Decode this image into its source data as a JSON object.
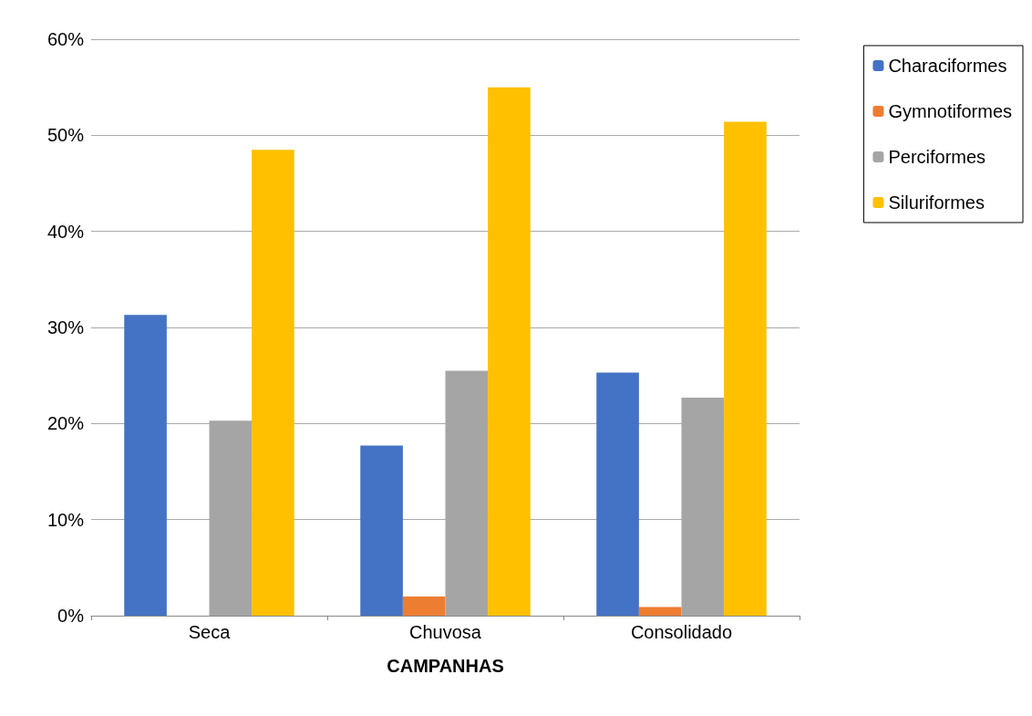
{
  "chart_data": {
    "type": "bar",
    "xlabel": "CAMPANHAS",
    "categories": [
      "Seca",
      "Chuvosa",
      "Consolidado"
    ],
    "series": [
      {
        "name": "Characiformes",
        "color": "#4472c4",
        "values": [
          31.3,
          17.7,
          25.3
        ]
      },
      {
        "name": "Gymnotiformes",
        "color": "#ed7d31",
        "values": [
          0,
          2.0,
          0.9
        ]
      },
      {
        "name": "Perciformes",
        "color": "#a5a5a5",
        "values": [
          20.3,
          25.5,
          22.7
        ]
      },
      {
        "name": "Siluriformes",
        "color": "#ffc000",
        "values": [
          48.5,
          55.0,
          51.4
        ]
      }
    ],
    "ylim": [
      0,
      60
    ],
    "yticks": [
      {
        "value": 0,
        "label": "0%"
      },
      {
        "value": 10,
        "label": "10%"
      },
      {
        "value": 20,
        "label": "20%"
      },
      {
        "value": 30,
        "label": "30%"
      },
      {
        "value": 40,
        "label": "40%"
      },
      {
        "value": 50,
        "label": "50%"
      },
      {
        "value": 60,
        "label": "60%"
      }
    ],
    "grid": "y",
    "legend": "top right"
  }
}
